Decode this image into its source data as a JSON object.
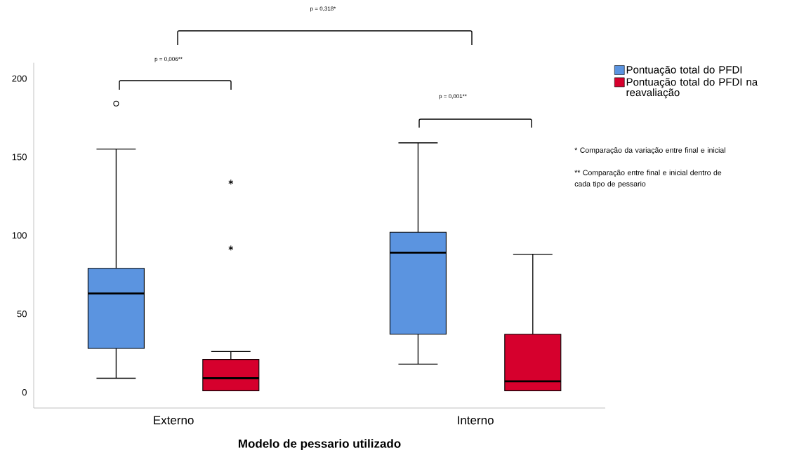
{
  "chart_data": {
    "type": "box",
    "xlabel": "Modelo de pessario utilizado",
    "categories": [
      "Externo",
      "Interno"
    ],
    "ylim": [
      -10,
      210
    ],
    "yticks": [
      0,
      50,
      100,
      150,
      200
    ],
    "legend": "top right",
    "series": [
      {
        "name": "Pontuação total do PFDI",
        "color": "#5b94e0",
        "marker": "circle",
        "boxes": [
          {
            "low": 9,
            "q1": 28,
            "median": 63,
            "q3": 79,
            "high": 155,
            "outliers": [
              184
            ]
          },
          {
            "low": 18,
            "q1": 37,
            "median": 89,
            "q3": 102,
            "high": 159
          }
        ]
      },
      {
        "name": "Pontuação total do PFDI na reavaliação",
        "color": "#d6002d",
        "marker": "star",
        "boxes": [
          {
            "low": 1,
            "q1": 1,
            "median": 9,
            "q3": 21,
            "high": 26,
            "outliers": [
              134,
              92
            ]
          },
          {
            "low": 1,
            "q1": 1,
            "median": 7,
            "q3": 37,
            "high": 88
          }
        ]
      }
    ],
    "annotations": [
      "p = 0,318*",
      "p = 0,006**",
      "p = 0,001**",
      "* Comparação da variação entre final e inicial",
      "** Comparação entre final e inicial dentro de cada tipo de pessario"
    ]
  }
}
